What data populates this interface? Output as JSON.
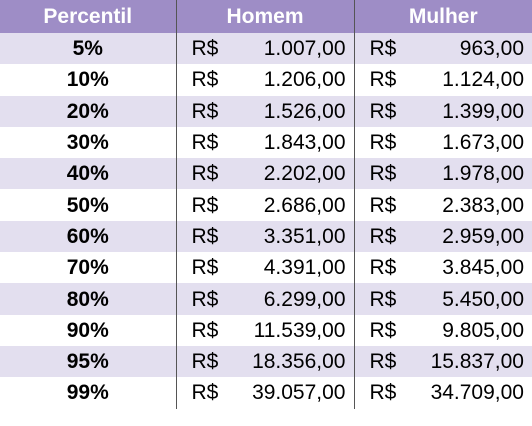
{
  "chart_data": {
    "type": "table",
    "columns": [
      "Percentil",
      "Homem",
      "Mulher"
    ],
    "currency": "R$",
    "rows": [
      {
        "percentil": "5%",
        "homem": "1.007,00",
        "mulher": "963,00"
      },
      {
        "percentil": "10%",
        "homem": "1.206,00",
        "mulher": "1.124,00"
      },
      {
        "percentil": "20%",
        "homem": "1.526,00",
        "mulher": "1.399,00"
      },
      {
        "percentil": "30%",
        "homem": "1.843,00",
        "mulher": "1.673,00"
      },
      {
        "percentil": "40%",
        "homem": "2.202,00",
        "mulher": "1.978,00"
      },
      {
        "percentil": "50%",
        "homem": "2.686,00",
        "mulher": "2.383,00"
      },
      {
        "percentil": "60%",
        "homem": "3.351,00",
        "mulher": "2.959,00"
      },
      {
        "percentil": "70%",
        "homem": "4.391,00",
        "mulher": "3.845,00"
      },
      {
        "percentil": "80%",
        "homem": "6.299,00",
        "mulher": "5.450,00"
      },
      {
        "percentil": "90%",
        "homem": "11.539,00",
        "mulher": "9.805,00"
      },
      {
        "percentil": "95%",
        "homem": "18.356,00",
        "mulher": "15.837,00"
      },
      {
        "percentil": "99%",
        "homem": "39.057,00",
        "mulher": "34.709,00"
      }
    ]
  },
  "colors": {
    "header_bg": "#9e8dc6",
    "header_text": "#ffffff",
    "band_bg": "#e3dfef",
    "divider": "#555555"
  }
}
